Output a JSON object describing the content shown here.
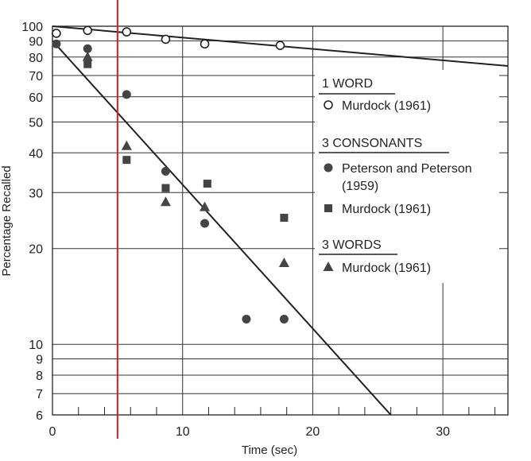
{
  "chart_data": {
    "type": "scatter",
    "y_scale": "log",
    "xlabel": "Time (sec)",
    "ylabel": "Percentage Recalled",
    "xlim": [
      0,
      35
    ],
    "ylim": [
      6,
      100
    ],
    "x_ticks": [
      0,
      10,
      20,
      30
    ],
    "y_ticks": [
      6,
      7,
      8,
      9,
      10,
      20,
      30,
      40,
      50,
      60,
      70,
      80,
      90,
      100
    ],
    "grid": true,
    "colors": {
      "ink": "#222222",
      "marker_fill": "#444444",
      "vline": "#cc2222"
    },
    "vline_x": 5,
    "groups": [
      {
        "heading": "1 WORD",
        "series": [
          {
            "name": "Murdock (1961)",
            "marker": "open-circle",
            "x": [
              0.3,
              2.7,
              5.7,
              8.7,
              11.7,
              17.5
            ],
            "y": [
              95,
              97,
              96,
              91,
              88,
              87
            ]
          }
        ]
      },
      {
        "heading": "3 CONSONANTS",
        "series": [
          {
            "name_lines": [
              "Peterson and Peterson",
              "(1959)"
            ],
            "marker": "filled-circle",
            "x": [
              0.3,
              2.7,
              5.7,
              8.7,
              11.7,
              14.9,
              17.8
            ],
            "y": [
              88,
              85,
              61,
              35,
              24,
              12,
              12
            ]
          },
          {
            "name": "Murdock (1961)",
            "marker": "filled-square",
            "x": [
              2.7,
              5.7,
              8.7,
              11.9,
              17.8
            ],
            "y": [
              76,
              38,
              31,
              32,
              25
            ]
          }
        ]
      },
      {
        "heading": "3 WORDS",
        "series": [
          {
            "name": "Murdock (1961)",
            "marker": "filled-triangle",
            "x": [
              2.7,
              5.7,
              8.7,
              11.7,
              17.8
            ],
            "y": [
              80,
              42,
              28,
              27,
              18
            ]
          }
        ]
      }
    ],
    "fit_lines": [
      {
        "of": "1 WORD",
        "from": [
          0,
          100
        ],
        "to": [
          35,
          75
        ]
      },
      {
        "of": "3 CONSONANTS",
        "from": [
          0,
          90
        ],
        "to": [
          26,
          6
        ]
      }
    ]
  }
}
